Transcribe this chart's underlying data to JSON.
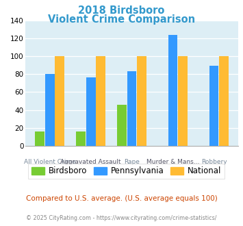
{
  "title_line1": "2018 Birdsboro",
  "title_line2": "Violent Crime Comparison",
  "title_color": "#3399cc",
  "cat_top": [
    "",
    "Aggravated Assault",
    "",
    "Murder & Mans...",
    ""
  ],
  "cat_bottom": [
    "All Violent Crime",
    "",
    "Rape",
    "",
    "Robbery"
  ],
  "birdsboro": [
    16,
    16,
    46,
    0,
    0
  ],
  "pennsylvania": [
    80,
    76,
    83,
    124,
    89
  ],
  "national": [
    100,
    100,
    100,
    100,
    100
  ],
  "birdsboro_color": "#77cc33",
  "pennsylvania_color": "#3399ff",
  "national_color": "#ffbb33",
  "ylim": [
    0,
    140
  ],
  "yticks": [
    0,
    20,
    40,
    60,
    80,
    100,
    120,
    140
  ],
  "plot_bg": "#ddeef5",
  "footer_text": "Compared to U.S. average. (U.S. average equals 100)",
  "footer_color": "#cc4400",
  "copyright_text": "© 2025 CityRating.com - https://www.cityrating.com/crime-statistics/",
  "copyright_color": "#888888"
}
